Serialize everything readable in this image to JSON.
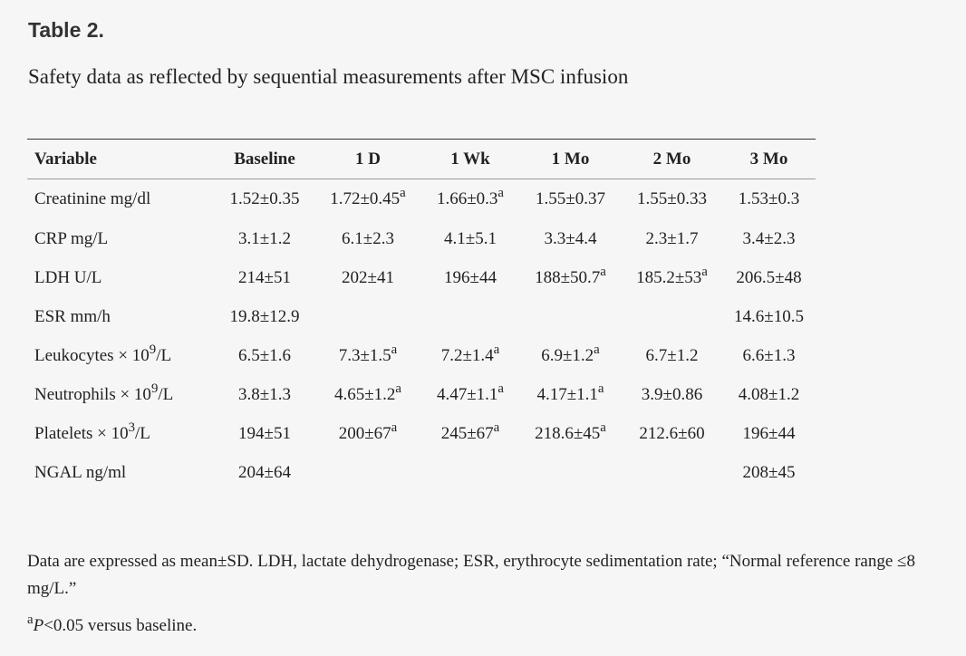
{
  "document": {
    "label": "Table 2.",
    "caption": "Safety data as reflected by sequential measurements after MSC infusion"
  },
  "table": {
    "headers": [
      "Variable",
      "Baseline",
      "1 D",
      "1 Wk",
      "1 Mo",
      "2 Mo",
      "3 Mo"
    ],
    "rows": [
      {
        "variable": "Creatinine mg/dl",
        "cells": [
          {
            "v": "1.52±0.35",
            "sup": ""
          },
          {
            "v": "1.72±0.45",
            "sup": "a"
          },
          {
            "v": "1.66±0.3",
            "sup": "a"
          },
          {
            "v": "1.55±0.37",
            "sup": ""
          },
          {
            "v": "1.55±0.33",
            "sup": ""
          },
          {
            "v": "1.53±0.3",
            "sup": ""
          }
        ]
      },
      {
        "variable": "CRP mg/L",
        "cells": [
          {
            "v": "3.1±1.2",
            "sup": ""
          },
          {
            "v": "6.1±2.3",
            "sup": ""
          },
          {
            "v": "4.1±5.1",
            "sup": ""
          },
          {
            "v": "3.3±4.4",
            "sup": ""
          },
          {
            "v": "2.3±1.7",
            "sup": ""
          },
          {
            "v": "3.4±2.3",
            "sup": ""
          }
        ]
      },
      {
        "variable": "LDH U/L",
        "cells": [
          {
            "v": "214±51",
            "sup": ""
          },
          {
            "v": "202±41",
            "sup": ""
          },
          {
            "v": "196±44",
            "sup": ""
          },
          {
            "v": "188±50.7",
            "sup": "a"
          },
          {
            "v": "185.2±53",
            "sup": "a"
          },
          {
            "v": "206.5±48",
            "sup": ""
          }
        ]
      },
      {
        "variable": "ESR mm/h",
        "cells": [
          {
            "v": "19.8±12.9",
            "sup": ""
          },
          {
            "v": "",
            "sup": ""
          },
          {
            "v": "",
            "sup": ""
          },
          {
            "v": "",
            "sup": ""
          },
          {
            "v": "",
            "sup": ""
          },
          {
            "v": "14.6±10.5",
            "sup": ""
          }
        ]
      },
      {
        "variable": "Leukocytes × 10",
        "var_sup": "9",
        "var_suffix": "/L",
        "cells": [
          {
            "v": "6.5±1.6",
            "sup": ""
          },
          {
            "v": "7.3±1.5",
            "sup": "a"
          },
          {
            "v": "7.2±1.4",
            "sup": "a"
          },
          {
            "v": "6.9±1.2",
            "sup": "a"
          },
          {
            "v": "6.7±1.2",
            "sup": ""
          },
          {
            "v": "6.6±1.3",
            "sup": ""
          }
        ]
      },
      {
        "variable": "Neutrophils × 10",
        "var_sup": "9",
        "var_suffix": "/L",
        "cells": [
          {
            "v": "3.8±1.3",
            "sup": ""
          },
          {
            "v": "4.65±1.2",
            "sup": "a"
          },
          {
            "v": "4.47±1.1",
            "sup": "a"
          },
          {
            "v": "4.17±1.1",
            "sup": "a"
          },
          {
            "v": "3.9±0.86",
            "sup": ""
          },
          {
            "v": "4.08±1.2",
            "sup": ""
          }
        ]
      },
      {
        "variable": "Platelets × 10",
        "var_sup": "3",
        "var_suffix": "/L",
        "cells": [
          {
            "v": "194±51",
            "sup": ""
          },
          {
            "v": "200±67",
            "sup": "a"
          },
          {
            "v": "245±67",
            "sup": "a"
          },
          {
            "v": "218.6±45",
            "sup": "a"
          },
          {
            "v": "212.6±60",
            "sup": ""
          },
          {
            "v": "196±44",
            "sup": ""
          }
        ]
      },
      {
        "variable": "NGAL ng/ml",
        "cells": [
          {
            "v": "204±64",
            "sup": ""
          },
          {
            "v": "",
            "sup": ""
          },
          {
            "v": "",
            "sup": ""
          },
          {
            "v": "",
            "sup": ""
          },
          {
            "v": "",
            "sup": ""
          },
          {
            "v": "208±45",
            "sup": ""
          }
        ]
      }
    ]
  },
  "notes": {
    "data_note": "Data are expressed as mean±SD. LDH, lactate dehydrogenase; ESR, erythrocyte sedimentation rate; “Normal reference range ≤8 mg/L.”",
    "footnote_marker": "a",
    "footnote_p": "P",
    "footnote_text": "<0.05 versus baseline."
  }
}
